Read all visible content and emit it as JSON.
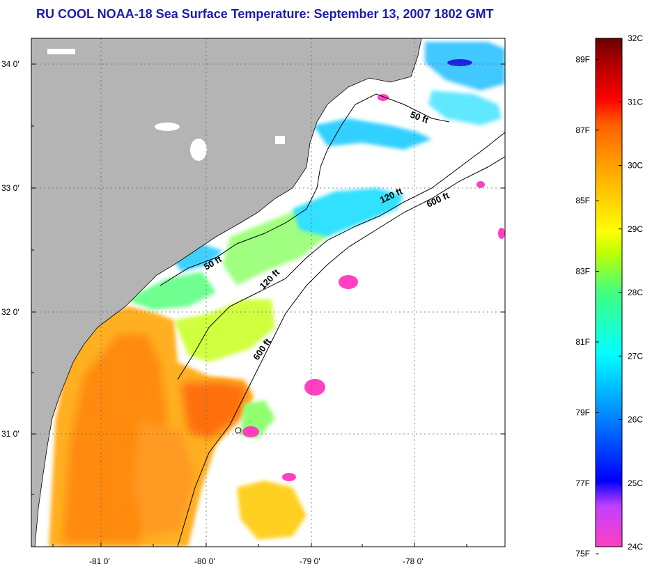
{
  "title": "RU COOL  NOAA-18  Sea Surface Temperature:  September 13, 2007 1802 GMT",
  "map": {
    "lon_ticks": [
      "-81 0'",
      "-80 0'",
      "-79 0'",
      "-78 0'"
    ],
    "lat_ticks": [
      "34 0'",
      "33 0'",
      "32 0'",
      "31 0'"
    ],
    "depth_contours": [
      "50 ft",
      "120 ft",
      "600 ft",
      "50 ft",
      "120 ft",
      "600 ft"
    ],
    "colors": {
      "land": "#b4b4b4",
      "ocean_no_data": "#ffffff",
      "title": "#1b1bb0"
    }
  },
  "colorbar": {
    "celsius": [
      "32C",
      "31C",
      "30C",
      "29C",
      "28C",
      "27C",
      "26C",
      "25C",
      "24C"
    ],
    "fahrenheit": [
      "89F",
      "87F",
      "85F",
      "83F",
      "81F",
      "79F",
      "77F",
      "75F"
    ],
    "range_c": [
      24,
      32
    ],
    "colors": [
      "#ff40c0",
      "#c040ff",
      "#0000ff",
      "#0080ff",
      "#00ffff",
      "#40ff80",
      "#c0ff00",
      "#ffff00",
      "#ffa000",
      "#ff6000",
      "#ff0000",
      "#b00000",
      "#6a0000"
    ]
  }
}
